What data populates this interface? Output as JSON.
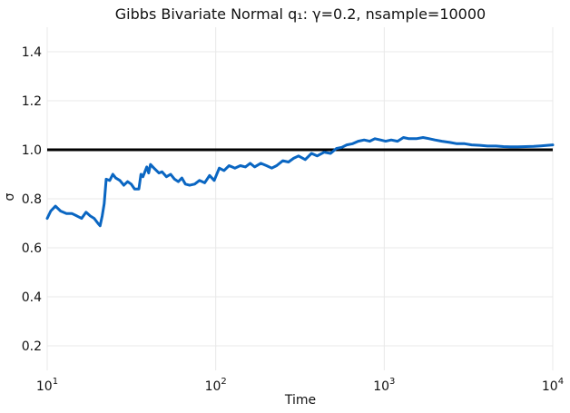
{
  "chart_data": {
    "type": "line",
    "title": "Gibbs Bivariate Normal q₁: γ=0.2, nsample=10000",
    "xlabel": "Time",
    "ylabel": "σ",
    "xscale": "log",
    "xlim": [
      10,
      10000
    ],
    "ylim": [
      0.1,
      1.5
    ],
    "x_ticks": [
      10,
      100,
      1000,
      10000
    ],
    "x_tick_labels": [
      {
        "base": "10",
        "exp": "1"
      },
      {
        "base": "10",
        "exp": "2"
      },
      {
        "base": "10",
        "exp": "3"
      },
      {
        "base": "10",
        "exp": "4"
      }
    ],
    "y_ticks": [
      0.2,
      0.4,
      0.6,
      0.8,
      1.0,
      1.2,
      1.4
    ],
    "y_tick_labels": [
      "0.2",
      "0.4",
      "0.6",
      "0.8",
      "1.0",
      "1.2",
      "1.4"
    ],
    "grid": true,
    "reference_line": {
      "y": 1.0,
      "color": "#000000"
    },
    "series": [
      {
        "color": "#0a66c2",
        "points": [
          [
            10,
            0.72
          ],
          [
            10.5,
            0.75
          ],
          [
            11.2,
            0.77
          ],
          [
            12,
            0.75
          ],
          [
            13,
            0.74
          ],
          [
            14,
            0.74
          ],
          [
            15,
            0.73
          ],
          [
            16,
            0.72
          ],
          [
            17,
            0.745
          ],
          [
            18,
            0.73
          ],
          [
            19,
            0.72
          ],
          [
            20,
            0.7
          ],
          [
            20.6,
            0.69
          ],
          [
            21.2,
            0.73
          ],
          [
            21.8,
            0.78
          ],
          [
            22.4,
            0.88
          ],
          [
            23.5,
            0.875
          ],
          [
            24.5,
            0.9
          ],
          [
            25.5,
            0.885
          ],
          [
            27,
            0.875
          ],
          [
            28.5,
            0.855
          ],
          [
            30,
            0.87
          ],
          [
            31.5,
            0.86
          ],
          [
            33,
            0.84
          ],
          [
            35,
            0.84
          ],
          [
            36,
            0.9
          ],
          [
            37,
            0.89
          ],
          [
            39,
            0.93
          ],
          [
            40,
            0.905
          ],
          [
            41,
            0.94
          ],
          [
            43,
            0.925
          ],
          [
            46,
            0.905
          ],
          [
            48,
            0.91
          ],
          [
            51,
            0.89
          ],
          [
            54,
            0.9
          ],
          [
            57,
            0.88
          ],
          [
            60,
            0.87
          ],
          [
            63,
            0.885
          ],
          [
            66,
            0.86
          ],
          [
            70,
            0.855
          ],
          [
            75,
            0.86
          ],
          [
            80,
            0.875
          ],
          [
            86,
            0.865
          ],
          [
            92,
            0.895
          ],
          [
            98,
            0.875
          ],
          [
            105,
            0.925
          ],
          [
            112,
            0.915
          ],
          [
            120,
            0.935
          ],
          [
            130,
            0.925
          ],
          [
            140,
            0.935
          ],
          [
            150,
            0.93
          ],
          [
            160,
            0.945
          ],
          [
            170,
            0.93
          ],
          [
            185,
            0.945
          ],
          [
            200,
            0.935
          ],
          [
            215,
            0.925
          ],
          [
            230,
            0.935
          ],
          [
            250,
            0.955
          ],
          [
            270,
            0.95
          ],
          [
            290,
            0.965
          ],
          [
            310,
            0.975
          ],
          [
            340,
            0.96
          ],
          [
            370,
            0.985
          ],
          [
            400,
            0.975
          ],
          [
            440,
            0.99
          ],
          [
            480,
            0.985
          ],
          [
            520,
            1.005
          ],
          [
            560,
            1.01
          ],
          [
            600,
            1.02
          ],
          [
            650,
            1.025
          ],
          [
            700,
            1.035
          ],
          [
            760,
            1.04
          ],
          [
            820,
            1.035
          ],
          [
            880,
            1.045
          ],
          [
            950,
            1.04
          ],
          [
            1020,
            1.035
          ],
          [
            1100,
            1.04
          ],
          [
            1200,
            1.035
          ],
          [
            1300,
            1.05
          ],
          [
            1400,
            1.045
          ],
          [
            1550,
            1.045
          ],
          [
            1700,
            1.05
          ],
          [
            1850,
            1.045
          ],
          [
            2000,
            1.04
          ],
          [
            2200,
            1.035
          ],
          [
            2450,
            1.03
          ],
          [
            2700,
            1.025
          ],
          [
            3000,
            1.025
          ],
          [
            3300,
            1.02
          ],
          [
            3700,
            1.018
          ],
          [
            4100,
            1.015
          ],
          [
            4600,
            1.015
          ],
          [
            5100,
            1.013
          ],
          [
            5600,
            1.012
          ],
          [
            6200,
            1.012
          ],
          [
            6900,
            1.013
          ],
          [
            7700,
            1.014
          ],
          [
            8500,
            1.016
          ],
          [
            9300,
            1.018
          ],
          [
            10000,
            1.02
          ]
        ]
      }
    ]
  }
}
